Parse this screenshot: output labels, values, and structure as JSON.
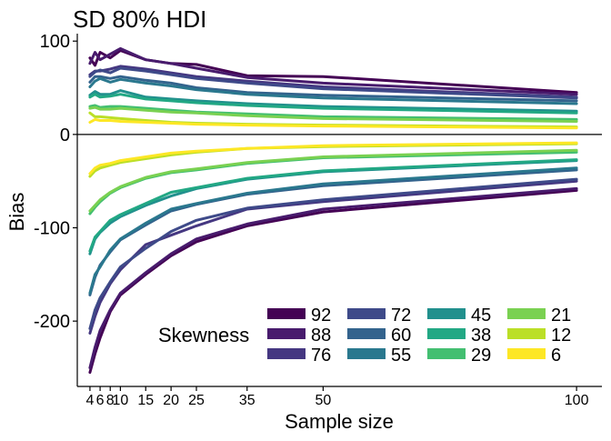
{
  "chart_data": {
    "type": "line",
    "title": "SD 80% HDI",
    "xlabel": "Sample size",
    "ylabel": "Bias",
    "xlim": [
      1.5,
      105
    ],
    "ylim": [
      -270,
      108
    ],
    "x_ticks": [
      4,
      6,
      8,
      10,
      15,
      20,
      25,
      35,
      50,
      100
    ],
    "y_ticks": [
      100,
      0,
      -100,
      -200
    ],
    "y_tick_labels": [
      "100",
      "0",
      "-100",
      "-200"
    ],
    "reference_line": 0,
    "grid": false,
    "legend": {
      "title": "Skewness",
      "placement": "bottom-right",
      "columns": 4
    },
    "x": [
      4,
      5,
      6,
      8,
      10,
      15,
      20,
      25,
      35,
      50,
      100
    ],
    "series": [
      {
        "name": "92",
        "color": "#440154",
        "upper": [
          82,
          74,
          88,
          82,
          90,
          80,
          76,
          75,
          63,
          62,
          45
        ],
        "lower": [
          -255,
          -235,
          -218,
          -190,
          -172,
          -150,
          -130,
          -115,
          -98,
          -83,
          -60
        ]
      },
      {
        "name": "88",
        "color": "#481B6D",
        "upper": [
          76,
          88,
          80,
          86,
          92,
          80,
          76,
          71,
          61,
          55,
          43
        ],
        "lower": [
          -250,
          -228,
          -210,
          -188,
          -170,
          -148,
          -128,
          -112,
          -96,
          -80,
          -58
        ]
      },
      {
        "name": "76",
        "color": "#453781",
        "upper": [
          64,
          68,
          68,
          70,
          73,
          70,
          66,
          62,
          57,
          51,
          40
        ],
        "lower": [
          -213,
          -195,
          -180,
          -160,
          -145,
          -118,
          -108,
          -98,
          -80,
          -72,
          -50
        ]
      },
      {
        "name": "72",
        "color": "#3E4A89",
        "upper": [
          62,
          67,
          69,
          66,
          71,
          68,
          64,
          60,
          55,
          49,
          39
        ],
        "lower": [
          -208,
          -188,
          -175,
          -158,
          -142,
          -122,
          -104,
          -92,
          -79,
          -70,
          -48
        ]
      },
      {
        "name": "60",
        "color": "#33638D",
        "upper": [
          56,
          62,
          62,
          60,
          62,
          58,
          55,
          50,
          45,
          42,
          36
        ],
        "lower": [
          -172,
          -153,
          -140,
          -126,
          -113,
          -97,
          -82,
          -75,
          -64,
          -55,
          -38
        ]
      },
      {
        "name": "55",
        "color": "#2A788E",
        "upper": [
          51,
          57,
          60,
          56,
          59,
          55,
          52,
          48,
          43,
          39,
          33
        ],
        "lower": [
          -170,
          -150,
          -142,
          -124,
          -112,
          -95,
          -80,
          -74,
          -63,
          -53,
          -36
        ]
      },
      {
        "name": "45",
        "color": "#21908D",
        "upper": [
          42,
          46,
          43,
          43,
          47,
          40,
          38,
          36,
          33,
          30,
          25
        ],
        "lower": [
          -128,
          -112,
          -105,
          -95,
          -88,
          -76,
          -66,
          -58,
          -48,
          -40,
          -28
        ]
      },
      {
        "name": "38",
        "color": "#22A884",
        "upper": [
          40,
          43,
          40,
          41,
          43,
          38,
          36,
          34,
          31,
          28,
          23
        ],
        "lower": [
          -125,
          -110,
          -104,
          -92,
          -86,
          -74,
          -62,
          -57,
          -47,
          -39,
          -27
        ]
      },
      {
        "name": "29",
        "color": "#43BF71",
        "upper": [
          30,
          31,
          29,
          30,
          30,
          28,
          26,
          24,
          22,
          19,
          16
        ],
        "lower": [
          -85,
          -78,
          -72,
          -63,
          -57,
          -47,
          -41,
          -38,
          -31,
          -25,
          -19
        ]
      },
      {
        "name": "21",
        "color": "#7AD151",
        "upper": [
          28,
          29,
          27,
          27,
          28,
          26,
          24,
          23,
          20,
          17,
          14
        ],
        "lower": [
          -82,
          -76,
          -70,
          -62,
          -56,
          -46,
          -40,
          -37,
          -30,
          -24,
          -17
        ]
      },
      {
        "name": "12",
        "color": "#BBDF27",
        "upper": [
          23,
          19,
          19,
          18,
          17,
          15,
          13,
          12,
          11,
          10,
          8
        ],
        "lower": [
          -45,
          -39,
          -36,
          -33,
          -30,
          -26,
          -22,
          -19,
          -15,
          -13,
          -10
        ]
      },
      {
        "name": "6",
        "color": "#FDE725",
        "upper": [
          13,
          16,
          15,
          15,
          14,
          13,
          12,
          11,
          10,
          9,
          7
        ],
        "lower": [
          -42,
          -36,
          -33,
          -31,
          -28,
          -24,
          -20,
          -18,
          -15,
          -12,
          -9
        ]
      }
    ]
  }
}
